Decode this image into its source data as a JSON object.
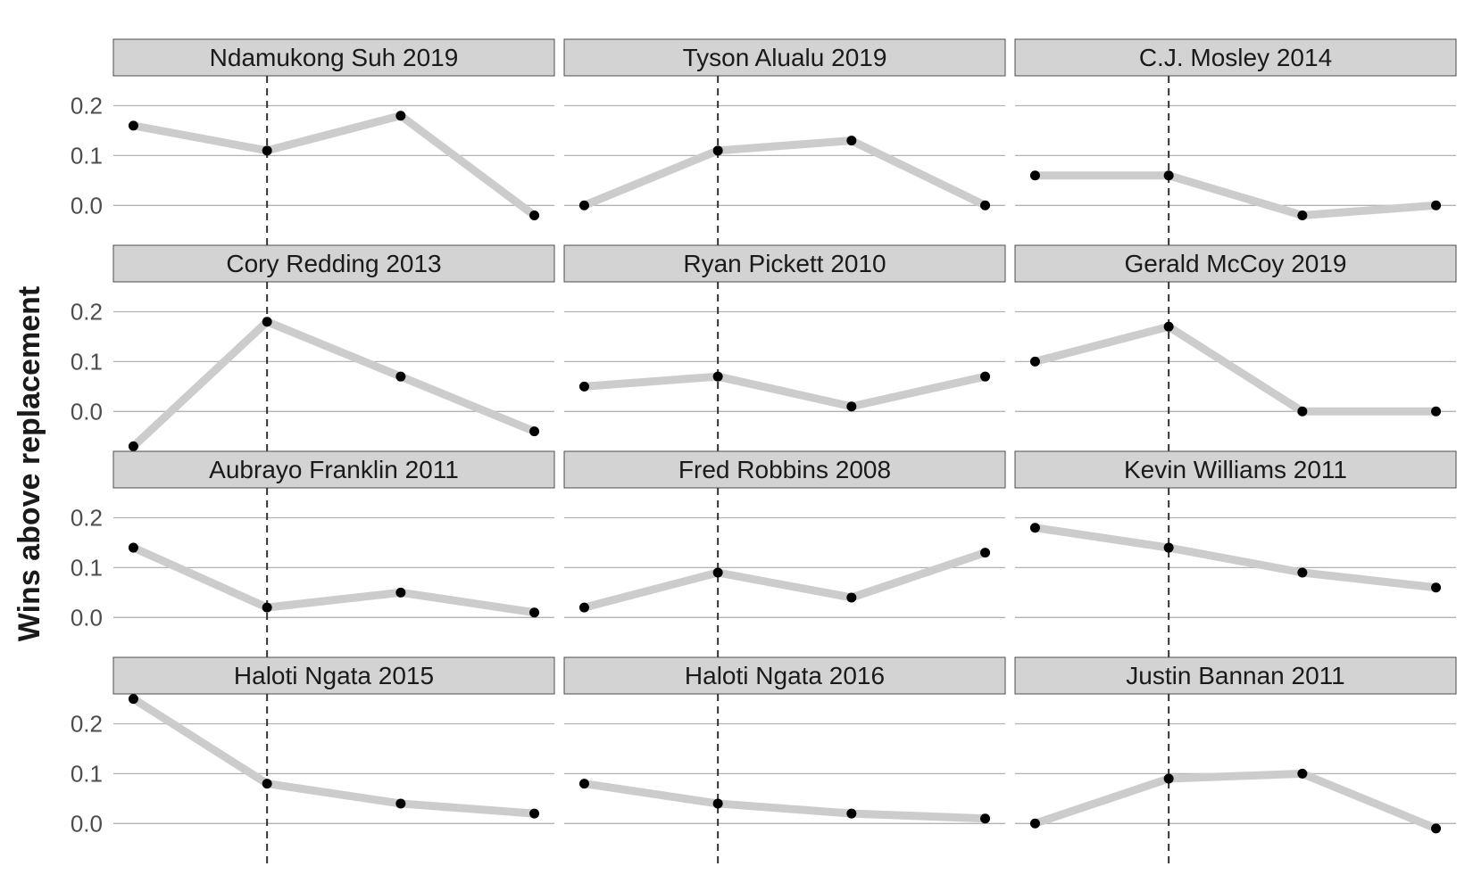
{
  "chart_data": {
    "type": "line",
    "ylabel": "Wins above replacement",
    "xlabel": "",
    "ylim": [
      -0.08,
      0.26
    ],
    "yticks": [
      "0.0",
      "0.1",
      "0.2"
    ],
    "ytick_values": [
      0.0,
      0.1,
      0.2
    ],
    "x": [
      1,
      2,
      3,
      4
    ],
    "reference_x": 2,
    "grid": "horizontal major",
    "colors": {
      "line": "#cccccc",
      "point": "#000000",
      "strip": "#d3d3d3",
      "reference": "#333333"
    },
    "panels": [
      {
        "title": "Ndamukong Suh 2019",
        "values": [
          0.16,
          0.11,
          0.18,
          -0.02
        ]
      },
      {
        "title": "Tyson Alualu 2019",
        "values": [
          0.0,
          0.11,
          0.13,
          0.0
        ]
      },
      {
        "title": "C.J. Mosley 2014",
        "values": [
          0.06,
          0.06,
          -0.02,
          0.0
        ]
      },
      {
        "title": "Cory Redding 2013",
        "values": [
          -0.07,
          0.18,
          0.07,
          -0.04
        ]
      },
      {
        "title": "Ryan Pickett 2010",
        "values": [
          0.05,
          0.07,
          0.01,
          0.07
        ]
      },
      {
        "title": "Gerald McCoy 2019",
        "values": [
          0.1,
          0.17,
          0.0,
          0.0
        ]
      },
      {
        "title": "Aubrayo Franklin 2011",
        "values": [
          0.14,
          0.02,
          0.05,
          0.01
        ]
      },
      {
        "title": "Fred Robbins 2008",
        "values": [
          0.02,
          0.09,
          0.04,
          0.13
        ]
      },
      {
        "title": "Kevin Williams 2011",
        "values": [
          0.18,
          0.14,
          0.09,
          0.06
        ]
      },
      {
        "title": "Haloti Ngata 2015",
        "values": [
          0.25,
          0.08,
          0.04,
          0.02
        ]
      },
      {
        "title": "Haloti Ngata 2016",
        "values": [
          0.08,
          0.04,
          0.02,
          0.01
        ]
      },
      {
        "title": "Justin Bannan 2011",
        "values": [
          0.0,
          0.09,
          0.1,
          -0.01
        ]
      }
    ]
  }
}
